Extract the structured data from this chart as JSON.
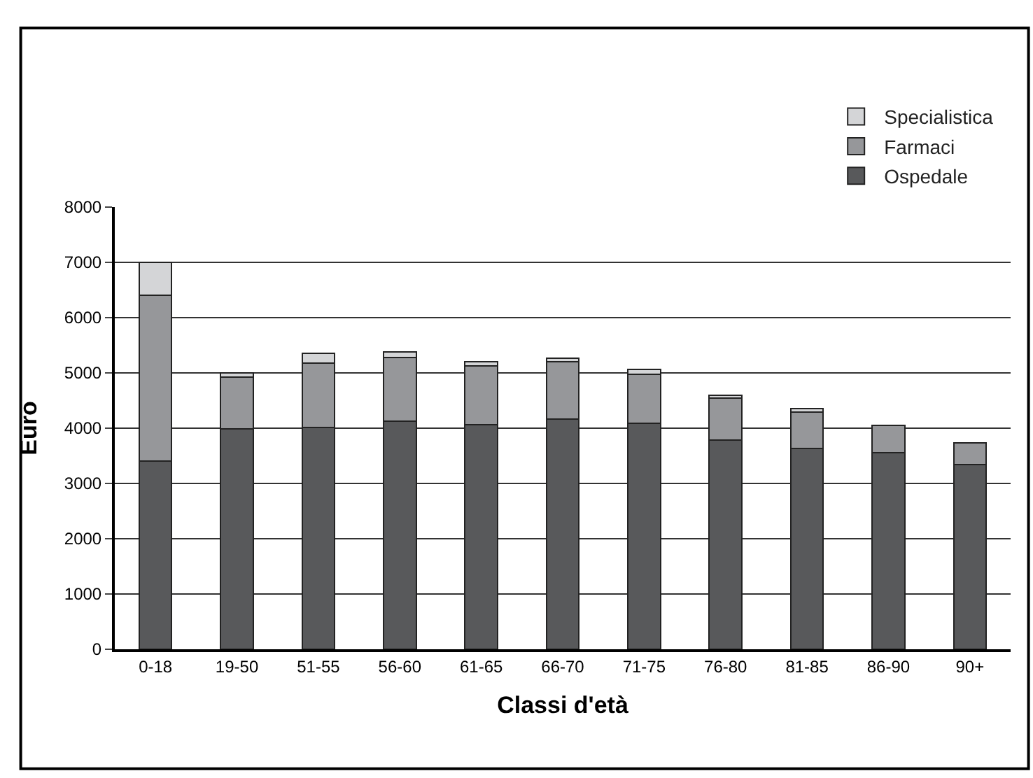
{
  "chart_data": {
    "type": "bar",
    "stacked": true,
    "xlabel": "Classi d'età",
    "ylabel": "Euro",
    "categories": [
      "0-18",
      "19-50",
      "51-55",
      "56-60",
      "61-65",
      "66-70",
      "71-75",
      "76-80",
      "81-85",
      "86-90",
      "90+"
    ],
    "series": [
      {
        "name": "Ospedale",
        "color": "#58595b",
        "values": [
          3400,
          3990,
          4010,
          4130,
          4060,
          4160,
          4090,
          3780,
          3630,
          3560,
          3340
        ]
      },
      {
        "name": "Farmaci",
        "color": "#96979a",
        "values": [
          3010,
          930,
          1170,
          1150,
          1070,
          1040,
          890,
          760,
          660,
          490,
          400
        ]
      },
      {
        "name": "Specialistica",
        "color": "#d4d5d7",
        "values": [
          590,
          80,
          170,
          100,
          70,
          70,
          80,
          50,
          60,
          null,
          null
        ]
      }
    ],
    "ylim": [
      0,
      8000
    ],
    "yticks": [
      0,
      1000,
      2000,
      3000,
      4000,
      5000,
      6000,
      7000,
      8000
    ],
    "grid": "y",
    "legend": "top right"
  }
}
